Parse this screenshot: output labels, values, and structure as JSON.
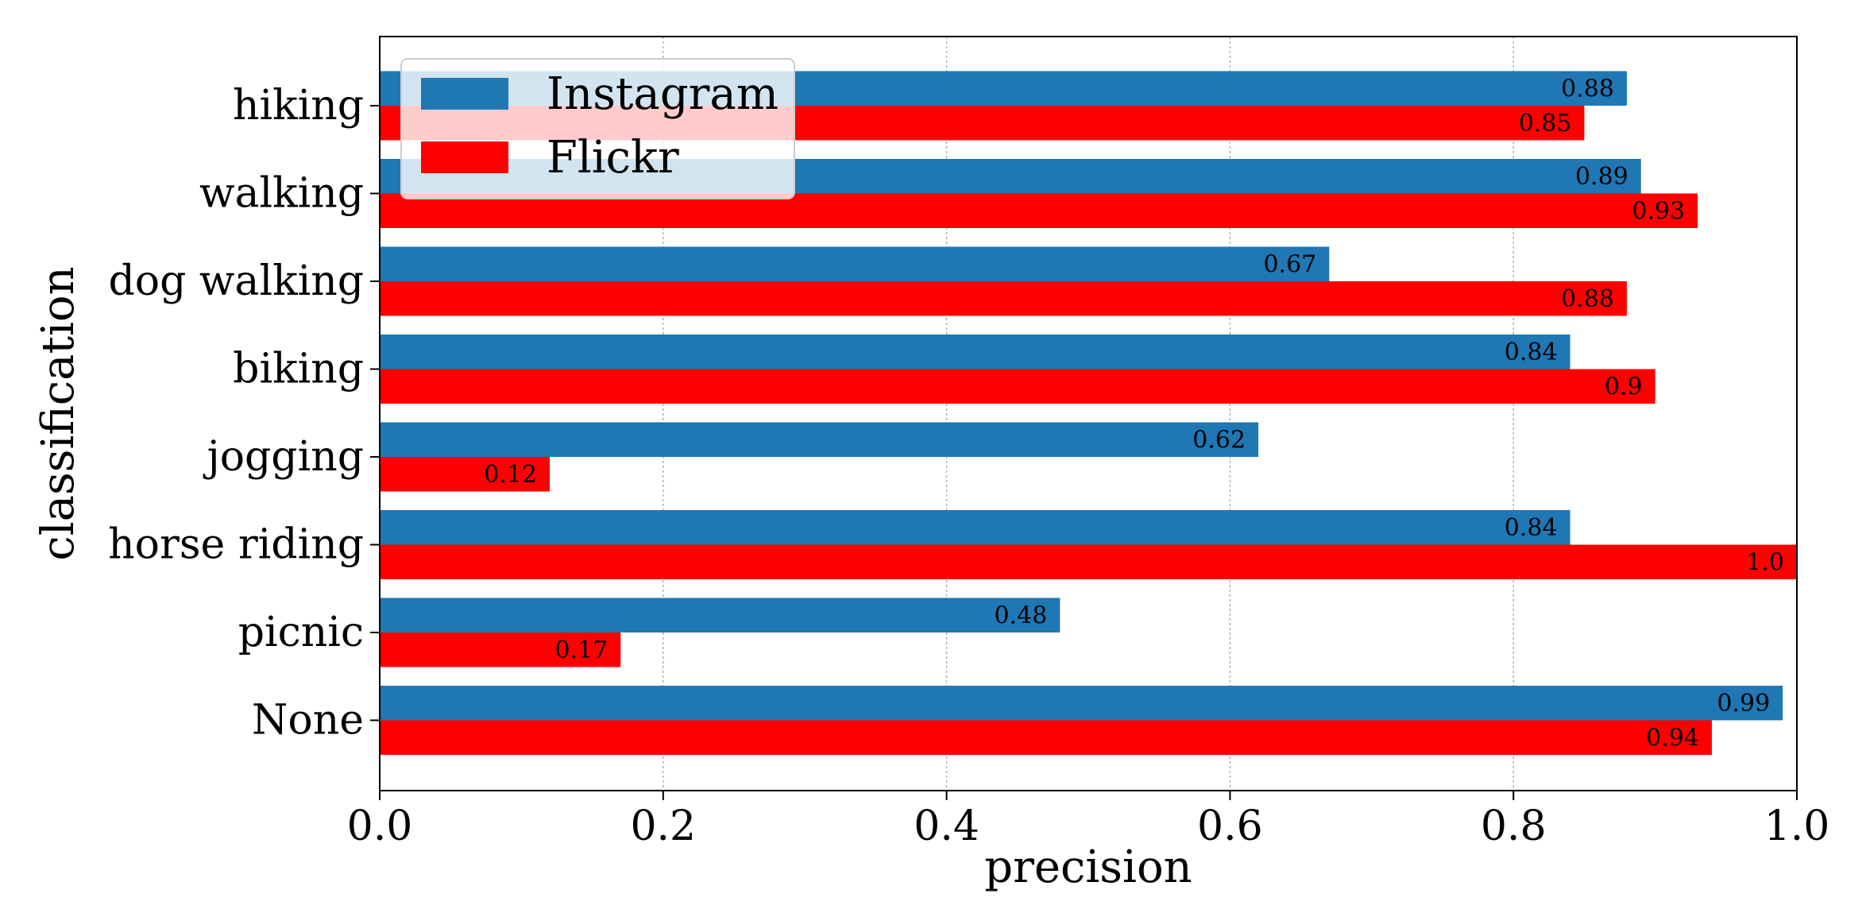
{
  "chart_data": {
    "type": "bar",
    "orientation": "horizontal",
    "categories": [
      "hiking",
      "walking",
      "dog walking",
      "biking",
      "jogging",
      "horse riding",
      "picnic",
      "None"
    ],
    "series": [
      {
        "name": "Instagram",
        "color": "#1f77b4",
        "values": [
          0.88,
          0.89,
          0.67,
          0.84,
          0.62,
          0.84,
          0.48,
          0.99
        ],
        "labels": [
          "0.88",
          "0.89",
          "0.67",
          "0.84",
          "0.62",
          "0.84",
          "0.48",
          "0.99"
        ]
      },
      {
        "name": "Flickr",
        "color": "#ff0000",
        "values": [
          0.85,
          0.93,
          0.88,
          0.9,
          0.12,
          1.0,
          0.17,
          0.94
        ],
        "labels": [
          "0.85",
          "0.93",
          "0.88",
          "0.9",
          "0.12",
          "1.0",
          "0.17",
          "0.94"
        ]
      }
    ],
    "title": "",
    "xlabel": "precision",
    "ylabel": "classification",
    "xlim": [
      0.0,
      1.0
    ],
    "xticks": [
      "0.0",
      "0.2",
      "0.4",
      "0.6",
      "0.8",
      "1.0"
    ],
    "grid": "x, dotted",
    "legend": "upper-left"
  }
}
